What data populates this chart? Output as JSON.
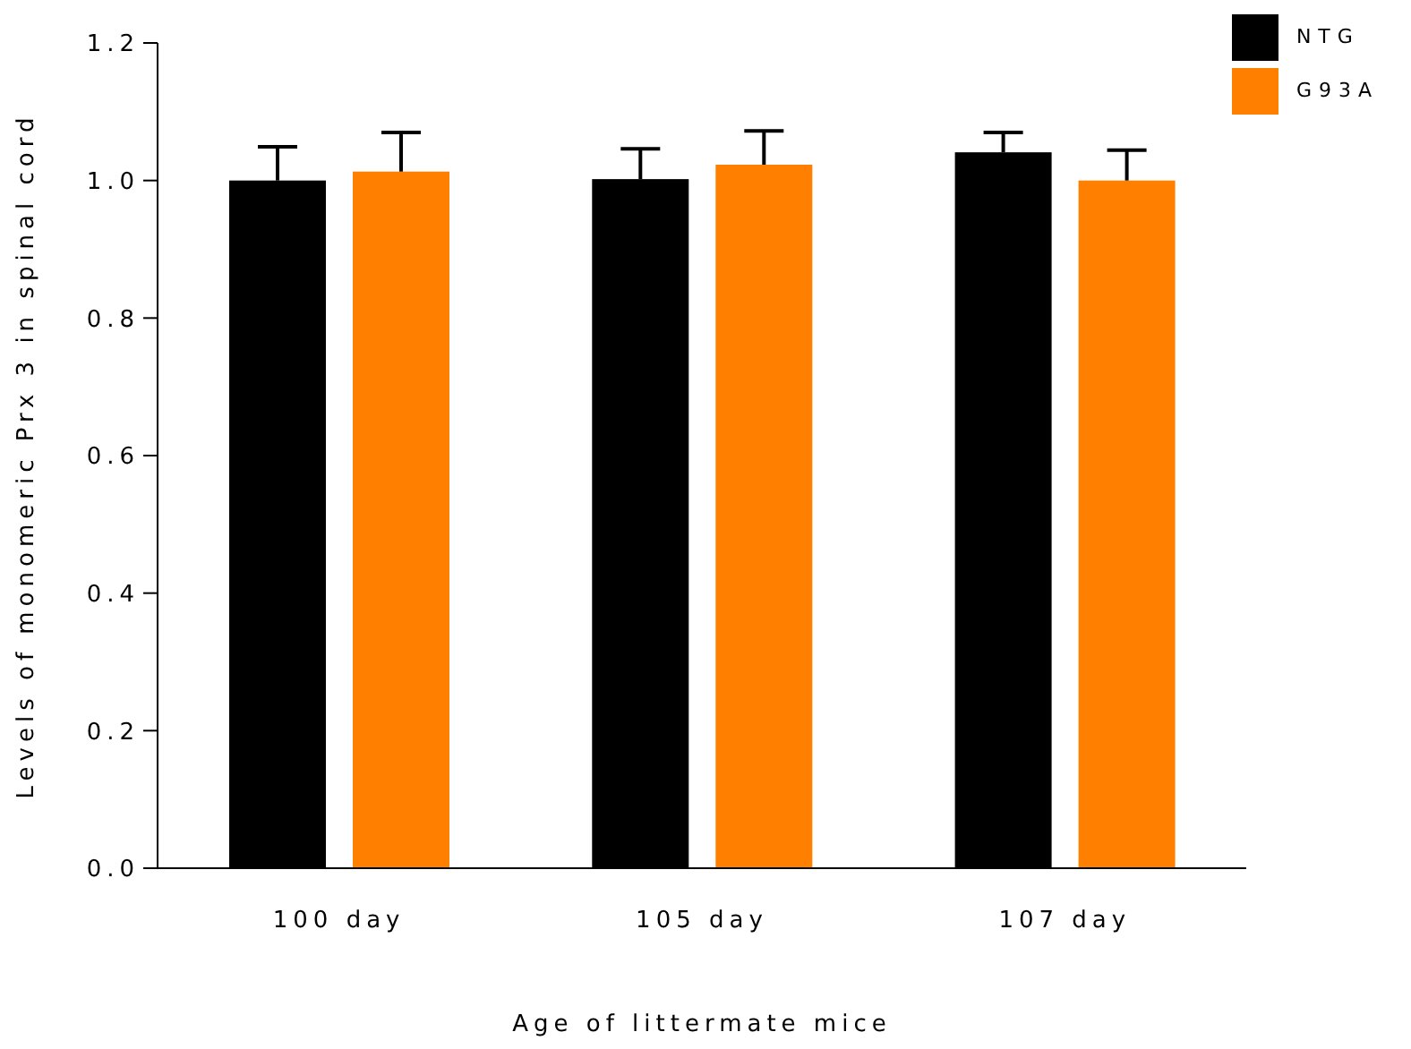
{
  "chart_data": {
    "type": "bar",
    "xlabel": "Age of littermate mice",
    "ylabel": "Levels of monomeric Prx 3 in spinal cord",
    "categories": [
      "100 day",
      "105 day",
      "107 day"
    ],
    "series": [
      {
        "name": "NTG",
        "color": "#000000",
        "values": [
          1.0,
          1.002,
          1.041
        ],
        "errors": [
          [
            1.0,
            1.049
          ],
          [
            1.002,
            1.046
          ],
          [
            1.041,
            1.07
          ]
        ]
      },
      {
        "name": "G93A",
        "color": "#ff8000",
        "values": [
          1.013,
          1.023,
          1.0
        ],
        "errors": [
          [
            1.013,
            1.07
          ],
          [
            1.023,
            1.072
          ],
          [
            1.0,
            1.044
          ]
        ]
      }
    ],
    "ylim": [
      0,
      1.2
    ],
    "yticks": [
      {
        "value": 0,
        "label": "0.0"
      },
      {
        "value": 0.2,
        "label": "0.2"
      },
      {
        "value": 0.4,
        "label": "0.4"
      },
      {
        "value": 0.6,
        "label": "0.6"
      },
      {
        "value": 0.8,
        "label": "0.8"
      },
      {
        "value": 1,
        "label": "1.0"
      },
      {
        "value": 1.2,
        "label": "1.2"
      }
    ],
    "grid": false,
    "legend": "top right"
  }
}
